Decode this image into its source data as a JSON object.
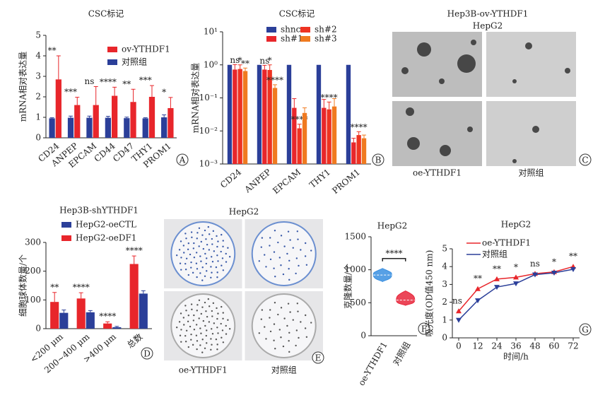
{
  "chart_data": [
    {
      "type": "bar",
      "title": "CSC标记",
      "ylabel": "mRNA相对表达量",
      "panel": "A",
      "categories": [
        "CD24",
        "ANPEP",
        "EPCAM",
        "CD44",
        "CD47",
        "THY1",
        "PROM1"
      ],
      "series": [
        {
          "name": "ov-YTHDF1",
          "color": "#e8262b",
          "values": [
            2.85,
            1.6,
            1.6,
            2.05,
            1.75,
            2.0,
            1.45
          ],
          "errors": [
            1.15,
            0.38,
            0.9,
            0.42,
            0.62,
            0.55,
            0.52
          ]
        },
        {
          "name": "对照组",
          "color": "#2b3f99",
          "values": [
            0.95,
            0.98,
            0.98,
            0.98,
            0.96,
            0.95,
            1.0
          ],
          "errors": [
            0.03,
            0.08,
            0.08,
            0.07,
            0.05,
            0.03,
            0.12
          ]
        }
      ],
      "annotations": [
        "**",
        "***",
        "ns",
        "****",
        "**",
        "***",
        "*"
      ],
      "ylim": [
        0,
        5
      ],
      "yticks": [
        0,
        1,
        2,
        3,
        4,
        5
      ]
    },
    {
      "type": "bar",
      "title": "CSC标记",
      "ylabel": "mRNA相对表达量",
      "panel": "B",
      "log": true,
      "categories": [
        "CD24",
        "ANPEP",
        "EPCAM",
        "THY1",
        "PROM1"
      ],
      "series": [
        {
          "name": "shnc",
          "color": "#2b3f99",
          "values": [
            1,
            1,
            1,
            1,
            1
          ]
        },
        {
          "name": "sh#1",
          "color": "#e8262b",
          "values": [
            0.72,
            0.72,
            0.05,
            0.05,
            0.0045
          ],
          "errors": [
            0.3,
            0.25,
            0.045,
            0.04,
            0.0015
          ]
        },
        {
          "name": "sh#2",
          "color": "#ee3322",
          "values": [
            0.75,
            0.7,
            0.012,
            0.045,
            0.0075
          ],
          "errors": [
            0.25,
            0.3,
            0.004,
            0.03,
            0.002
          ]
        },
        {
          "name": "sh#3",
          "color": "#f07a20",
          "values": [
            0.65,
            0.2,
            0.035,
            0.055,
            0.006
          ],
          "errors": [
            0.15,
            0.05,
            0.015,
            0.04,
            0.0015
          ]
        }
      ],
      "annotations": [
        [
          "ns",
          "*",
          "**"
        ],
        [
          "ns",
          "*",
          "****"
        ],
        [
          "",
          "****",
          ""
        ],
        [
          "",
          "****",
          ""
        ],
        [
          "",
          "****",
          ""
        ]
      ],
      "ylim": [
        0.001,
        10
      ],
      "yticks": [
        {
          "value": 0.001,
          "label": "10⁻³"
        },
        {
          "value": 0.01,
          "label": "10⁻²"
        },
        {
          "value": 0.1,
          "label": "10⁻¹"
        },
        {
          "value": 1,
          "label": "10⁰"
        },
        {
          "value": 10,
          "label": "10¹"
        }
      ]
    },
    {
      "type": "image",
      "title": "Hep3B-ov-YTHDF1",
      "subtitle": "HepG2",
      "labels": [
        "oe-YTHDF1",
        "对照组"
      ],
      "panel": "C"
    },
    {
      "type": "bar",
      "title": "Hep3B-shYTHDF1",
      "ylabel": "细胞球体数量/个",
      "panel": "D",
      "categories": [
        "<200 μm",
        "200~400 μm",
        ">400 μm",
        "总数"
      ],
      "series": [
        {
          "name": "HepG2-oeCTL",
          "color": "#2b3f99",
          "values": [
            55,
            57,
            5,
            122
          ],
          "errors": [
            10,
            6,
            3,
            10
          ]
        },
        {
          "name": "HepG2-oeDF1",
          "color": "#e8262b",
          "values": [
            93,
            105,
            18,
            225
          ],
          "errors": [
            33,
            20,
            6,
            28
          ]
        }
      ],
      "annotations": [
        "**",
        "****",
        "****",
        "****"
      ],
      "ylim": [
        0,
        300
      ],
      "yticks": [
        0,
        100,
        200,
        300
      ]
    },
    {
      "type": "plates",
      "title": "HepG2",
      "labels": [
        "oe-YTHDF1",
        "对照组"
      ],
      "panel": "E"
    },
    {
      "type": "violin",
      "title": "HepG2",
      "ylabel": "克隆数量/个",
      "panel": "F",
      "categories": [
        "oe-YTHDF1",
        "对照组"
      ],
      "colors": [
        "#3a8fe0",
        "#e8263b"
      ],
      "medians": [
        920,
        540
      ],
      "mins": [
        820,
        460
      ],
      "maxs": [
        1020,
        680
      ],
      "annotation": "****",
      "ylim": [
        0,
        1500
      ],
      "yticks": [
        0,
        500,
        1000,
        1500
      ]
    },
    {
      "type": "line",
      "title": "HepG2",
      "ylabel": "吸光度(OD值450 nm)",
      "xlabel": "时间/h",
      "panel": "G",
      "x": [
        0,
        12,
        24,
        36,
        48,
        60,
        72
      ],
      "series": [
        {
          "name": "oe-YTHDF1",
          "color": "#e8262b",
          "values": [
            1.5,
            2.75,
            3.3,
            3.4,
            3.6,
            3.7,
            4.0
          ]
        },
        {
          "name": "对照组",
          "color": "#2b3f99",
          "values": [
            1.0,
            2.1,
            2.85,
            3.05,
            3.55,
            3.65,
            3.85
          ]
        }
      ],
      "annotations": [
        "ns",
        "**",
        "**",
        "*",
        "ns",
        "*",
        "**"
      ],
      "xlim": [
        -4,
        76
      ],
      "xticks": [
        0,
        12,
        24,
        36,
        48,
        60,
        72
      ],
      "ylim": [
        0,
        5
      ],
      "yticks": [
        0,
        1,
        2,
        3,
        4,
        5
      ]
    }
  ]
}
